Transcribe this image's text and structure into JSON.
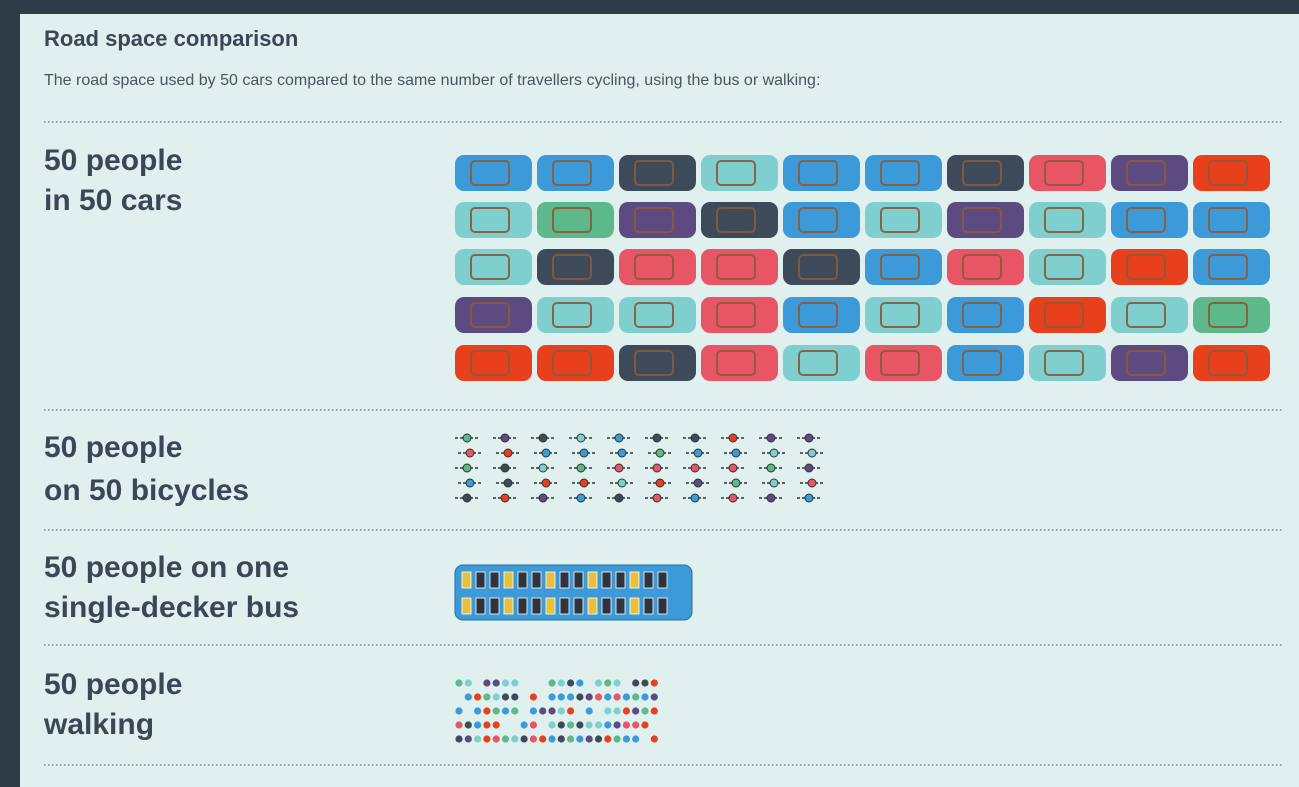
{
  "header": {
    "title": "Road space comparison",
    "subtitle": "The road space used by 50 cars compared to the same number of travellers cycling, using the bus or walking:"
  },
  "rows": [
    {
      "lines": [
        "50 people",
        "in 50 cars"
      ]
    },
    {
      "lines": [
        "50 people",
        "on 50 bicycles"
      ]
    },
    {
      "lines": [
        "50 people on one",
        "single-decker bus"
      ]
    },
    {
      "lines": [
        "50 people",
        "walking"
      ]
    }
  ]
}
